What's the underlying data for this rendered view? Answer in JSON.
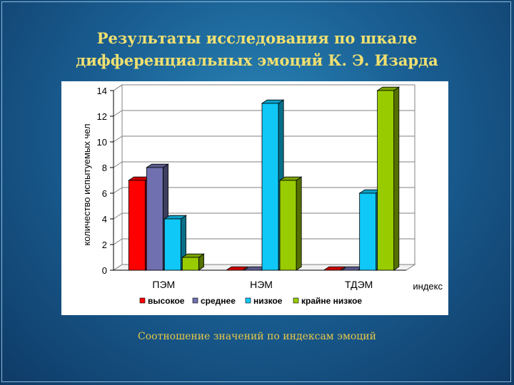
{
  "slide": {
    "title_line1": "Результаты исследования по шкале",
    "title_line2": "дифференциальных эмоций К. Э. Изарда",
    "caption": "Соотношение значений по индексам эмоций"
  },
  "colors": {
    "background": "#1a5f93",
    "title": "#f0e070",
    "caption": "#e8c94a"
  },
  "chart_data": {
    "type": "bar",
    "style": "3d-clustered",
    "categories": [
      "ПЭМ",
      "НЭМ",
      "ТДЭМ"
    ],
    "xlabel": "индекс",
    "ylabel": "количество испытуемых чел",
    "ylim": [
      0,
      14
    ],
    "yticks": [
      "0",
      "2",
      "4",
      "6",
      "8",
      "10",
      "12",
      "14"
    ],
    "grid": true,
    "legend_position": "bottom",
    "series": [
      {
        "name": "высокое",
        "color": "#ff0000",
        "values": [
          7,
          0,
          0
        ]
      },
      {
        "name": "среднее",
        "color": "#7070b0",
        "values": [
          8,
          0,
          0
        ]
      },
      {
        "name": "низкое",
        "color": "#10c8f8",
        "values": [
          4,
          13,
          6
        ]
      },
      {
        "name": "крайне низкое",
        "color": "#99cc00",
        "values": [
          1,
          7,
          14
        ]
      }
    ]
  }
}
